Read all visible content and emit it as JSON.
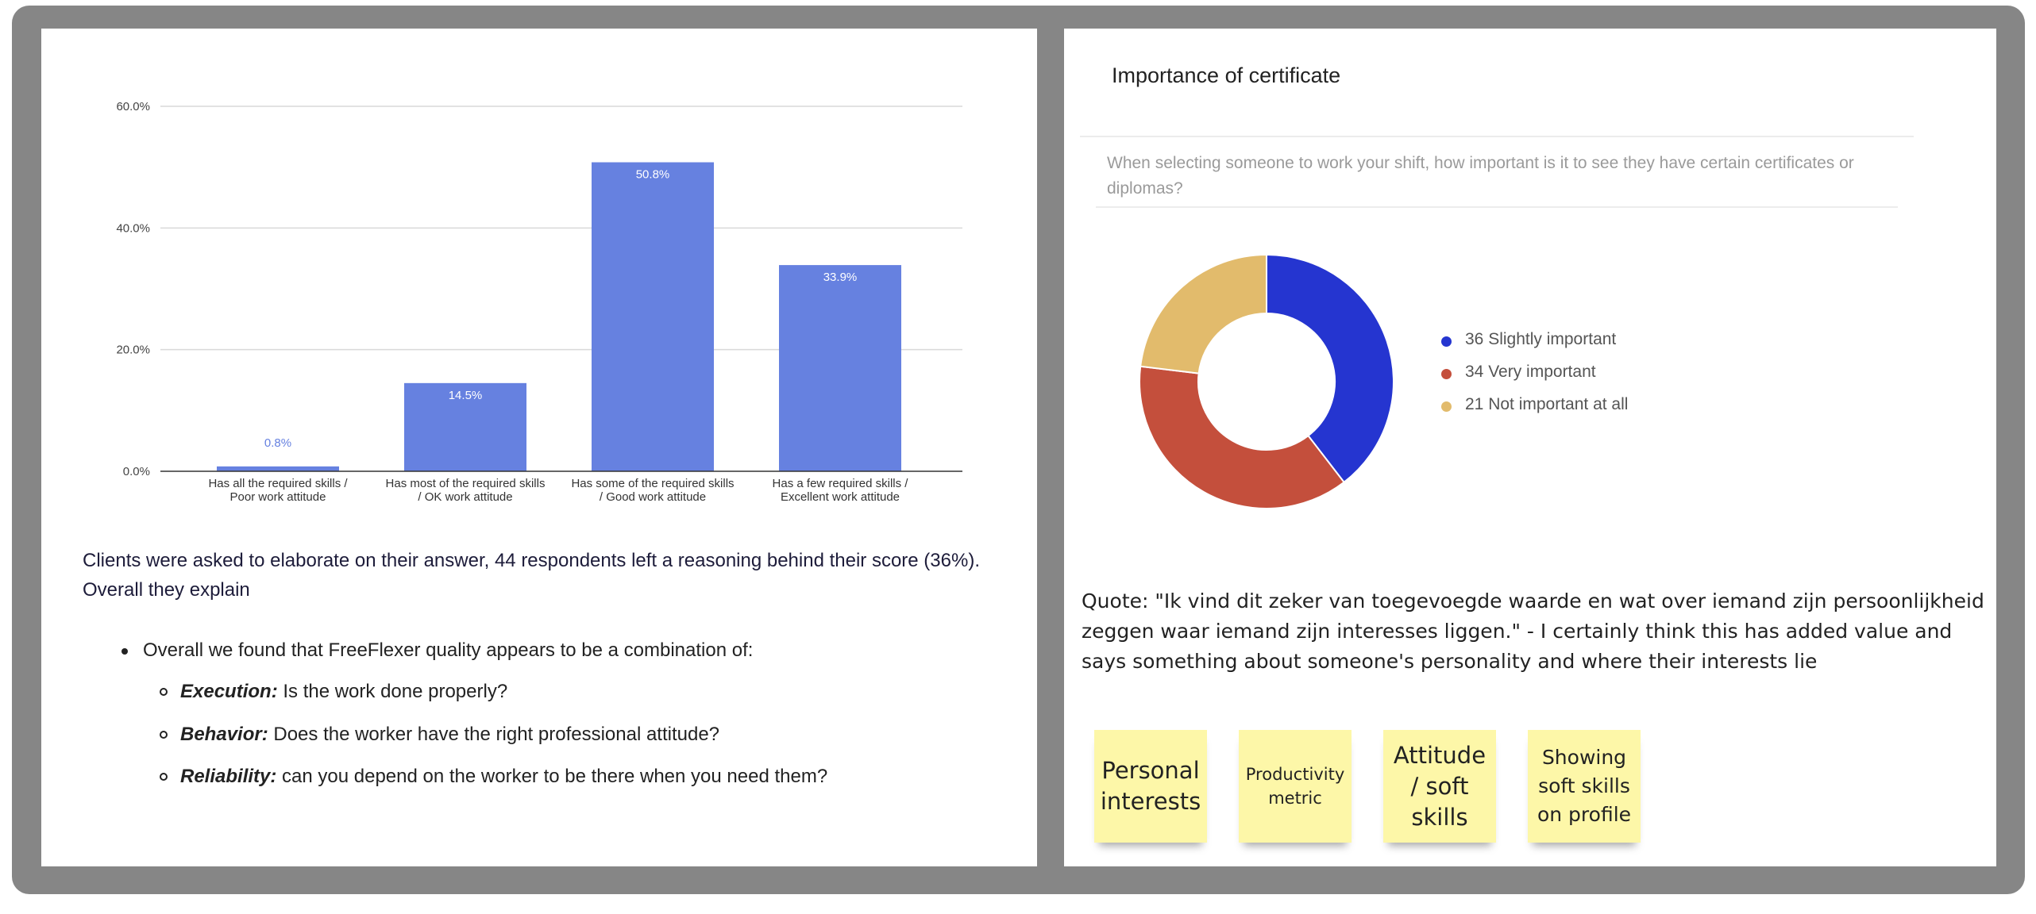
{
  "chart_data": [
    {
      "type": "bar",
      "categories": [
        [
          "Has all the required skills /",
          "Poor work attitude"
        ],
        [
          "Has most of the required skills",
          "/ OK work attitude"
        ],
        [
          "Has some of the required skills",
          "/ Good work attitude"
        ],
        [
          "Has a few required skills /",
          "Excellent work attitude"
        ]
      ],
      "values": [
        0.8,
        14.5,
        50.8,
        33.9
      ],
      "data_labels": [
        "0.8%",
        "14.5%",
        "50.8%",
        "33.9%"
      ],
      "yticks": [
        "0.0%",
        "20.0%",
        "40.0%",
        "60.0%"
      ],
      "ylim": [
        0,
        60
      ],
      "grid": true,
      "bar_color": "#6681e0"
    },
    {
      "type": "pie",
      "title": "Importance of certificate",
      "labels": [
        "Slightly important",
        "Very important",
        "Not important at all"
      ],
      "values": [
        36,
        34,
        21
      ],
      "legend_labels": [
        "36 Slightly important",
        "34 Very important",
        "21 Not important at all"
      ],
      "colors": [
        "#2535d0",
        "#c44f3c",
        "#e2bb6c"
      ],
      "legend": "right",
      "donut": true
    }
  ],
  "left": {
    "paragraph": "Clients were asked to elaborate on their answer, 44 respondents left a reasoning behind their score (36%). Overall they explain",
    "bullet_main": "Overall we found that FreeFlexer quality appears to be a combination of:",
    "sub_bullets": [
      {
        "term": "Execution:",
        "text": " Is the work done properly?"
      },
      {
        "term": "Behavior:",
        "text": " Does the worker have the right professional attitude?"
      },
      {
        "term": "Reliability:",
        "text": " can you depend on the worker to be there when you need them?"
      }
    ]
  },
  "right": {
    "question": "When selecting someone to work your shift, how important is it to see they have certain certificates or diplomas?",
    "quote": "Quote: \"Ik vind dit zeker van toegevoegde waarde en wat over iemand zijn persoonlijkheid zeggen waar iemand zijn interesses liggen.\" - I certainly think this has added value and says something about someone's personality and where their interests lie",
    "stickies": [
      "Personal interests",
      "Productivity metric",
      "Attitude / soft skills",
      "Showing soft skills on profile"
    ],
    "sticky_color": "#fdf7a8"
  }
}
